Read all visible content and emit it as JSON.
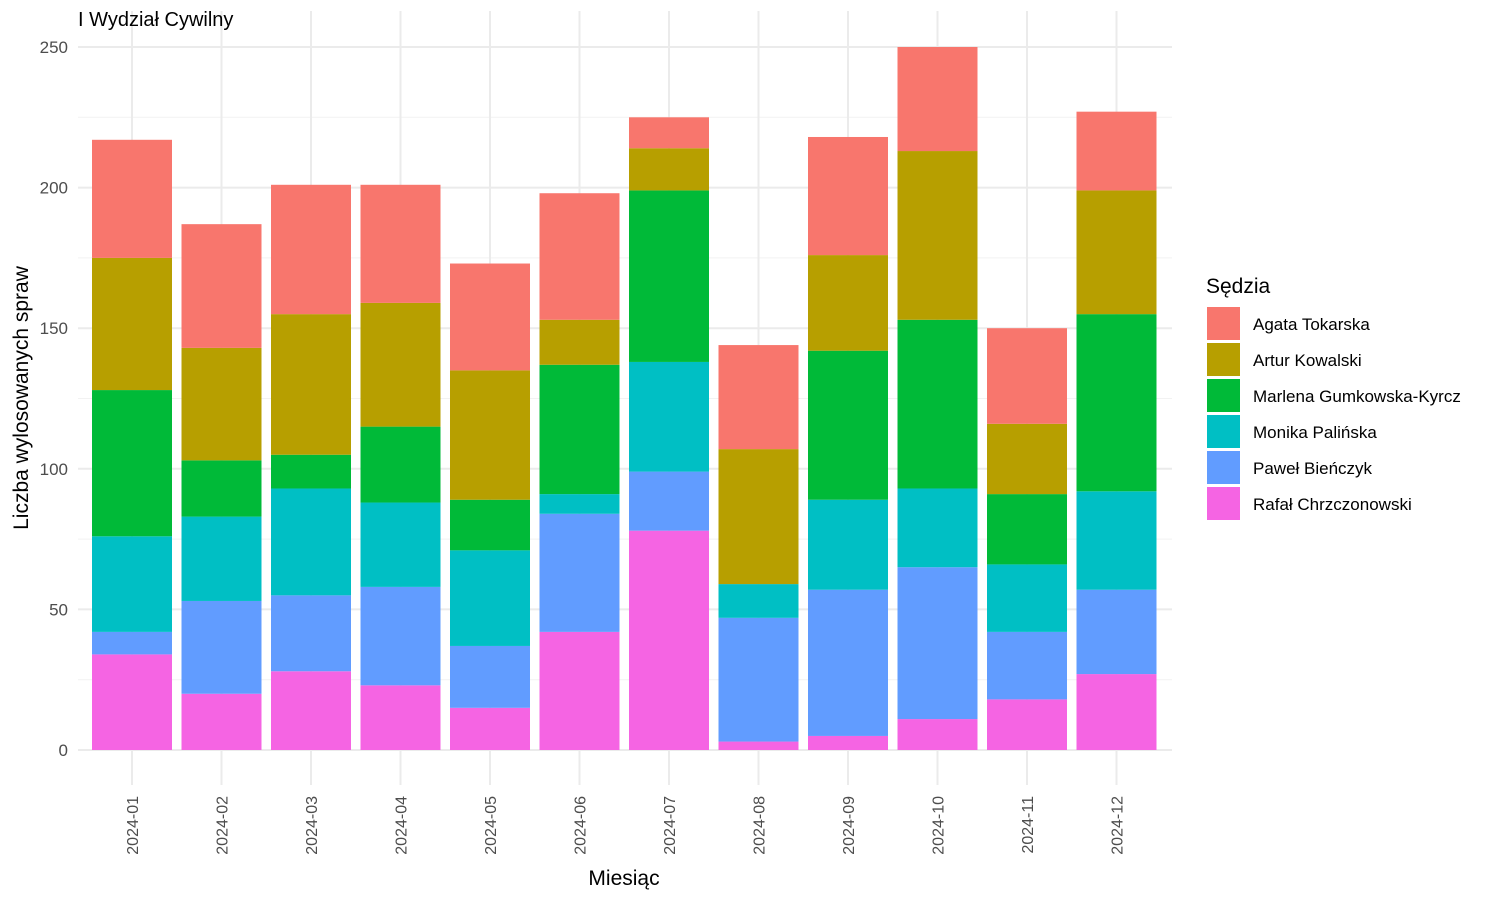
{
  "chart_data": {
    "type": "bar",
    "stacked": true,
    "title": "I Wydział Cywilny",
    "xlabel": "Miesiąc",
    "ylabel": "Liczba wylosowanych spraw",
    "ylim": [
      0,
      256
    ],
    "yticks": [
      0,
      50,
      100,
      150,
      200,
      250
    ],
    "grid": true,
    "legend_title": "Sędzia",
    "legend_position": "right",
    "categories": [
      "2024-01",
      "2024-02",
      "2024-03",
      "2024-04",
      "2024-05",
      "2024-06",
      "2024-07",
      "2024-08",
      "2024-09",
      "2024-10",
      "2024-11",
      "2024-12"
    ],
    "series": [
      {
        "name": "Agata Tokarska",
        "color": "#F8766D",
        "values": [
          42,
          44,
          46,
          42,
          38,
          45,
          11,
          37,
          42,
          37,
          34,
          28
        ]
      },
      {
        "name": "Artur Kowalski",
        "color": "#B79F00",
        "values": [
          47,
          40,
          50,
          44,
          46,
          16,
          15,
          48,
          34,
          60,
          25,
          44
        ]
      },
      {
        "name": "Marlena Gumkowska-Kyrcz",
        "color": "#00BA38",
        "values": [
          52,
          20,
          12,
          27,
          18,
          46,
          61,
          0,
          53,
          60,
          25,
          63
        ]
      },
      {
        "name": "Monika Palińska",
        "color": "#00BFC4",
        "values": [
          34,
          30,
          38,
          30,
          34,
          7,
          39,
          12,
          32,
          28,
          24,
          35
        ]
      },
      {
        "name": "Paweł Bieńczyk",
        "color": "#619CFF",
        "values": [
          8,
          33,
          27,
          35,
          22,
          42,
          21,
          44,
          52,
          54,
          24,
          30
        ]
      },
      {
        "name": "Rafał Chrzczonowski",
        "color": "#F564E3",
        "values": [
          34,
          20,
          28,
          23,
          15,
          42,
          78,
          3,
          5,
          11,
          18,
          27
        ]
      }
    ]
  }
}
